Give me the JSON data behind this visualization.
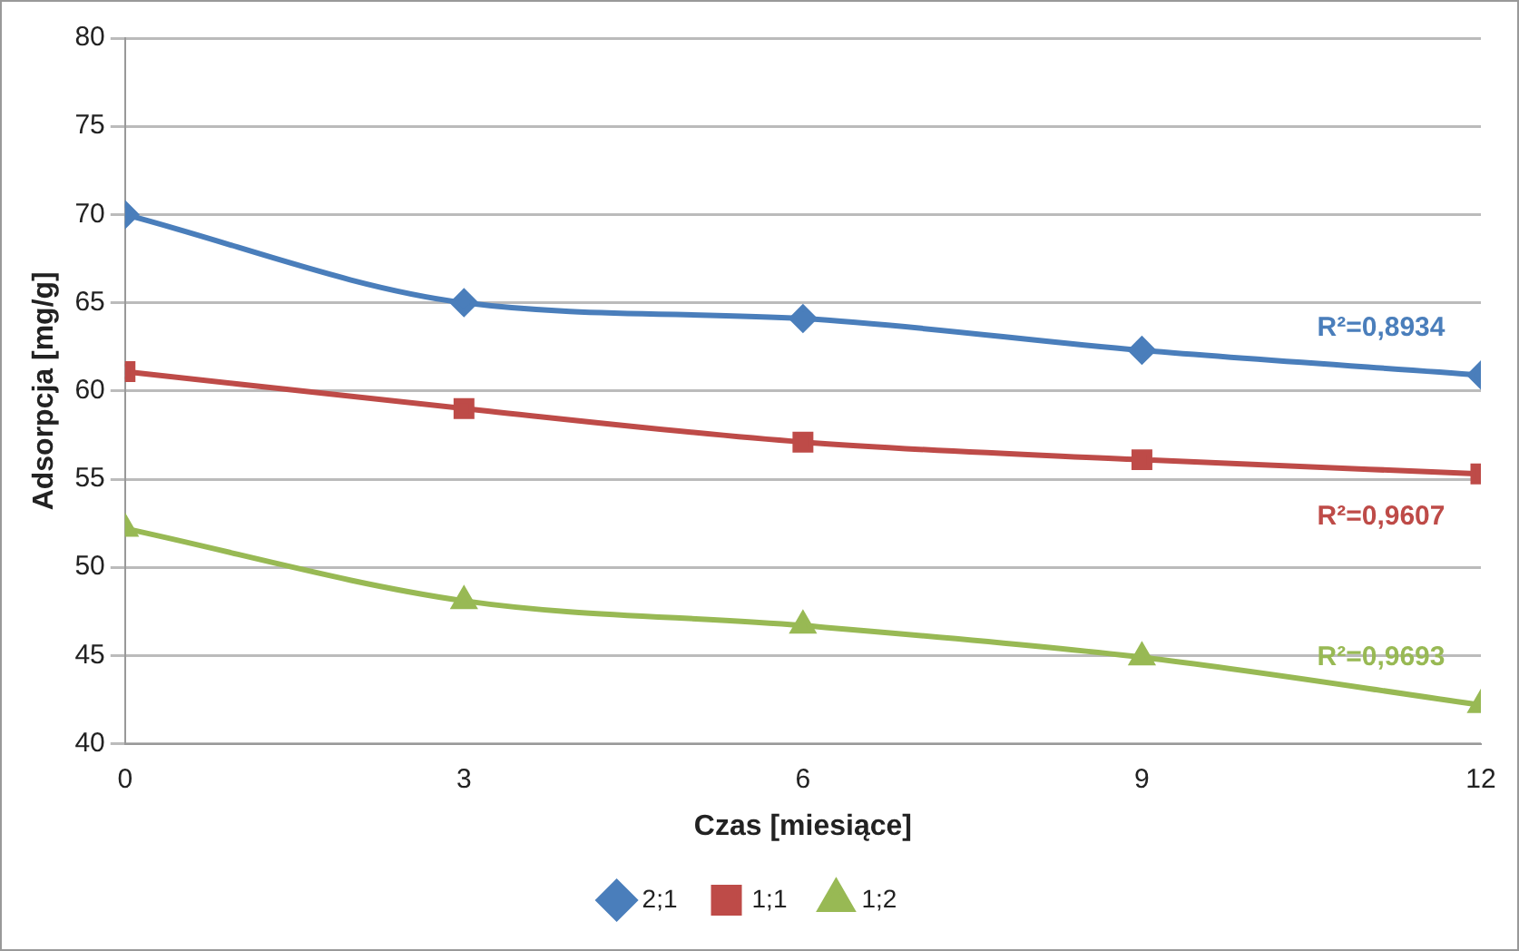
{
  "chart_data": {
    "type": "line",
    "xlabel": "Czas [miesiące]",
    "ylabel": "Adsorpcja [mg/g]",
    "x": [
      0,
      3,
      6,
      9,
      12
    ],
    "xlim": [
      0,
      12
    ],
    "xticks": [
      0,
      3,
      6,
      9,
      12
    ],
    "ylim": [
      40,
      80
    ],
    "yticks": [
      40,
      45,
      50,
      55,
      60,
      65,
      70,
      75,
      80
    ],
    "series": [
      {
        "name": "2;1",
        "color": "#4a7ebb",
        "marker": "diamond",
        "values": [
          70,
          65,
          64.1,
          62.3,
          60.9
        ]
      },
      {
        "name": "1;1",
        "color": "#be4b48",
        "marker": "square",
        "values": [
          61.1,
          59,
          57.1,
          56.1,
          55.3
        ]
      },
      {
        "name": "1;2",
        "color": "#98b954",
        "marker": "triangle",
        "values": [
          52.2,
          48.1,
          46.7,
          44.9,
          42.2
        ]
      }
    ],
    "annotations": [
      "R²=0,8934",
      "R²=0,9607",
      "R²=0,9693"
    ],
    "grid": "y",
    "legend": "bottom"
  }
}
